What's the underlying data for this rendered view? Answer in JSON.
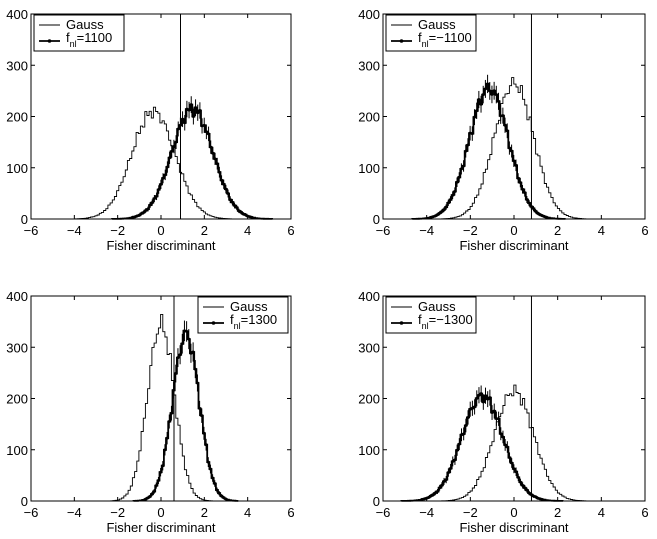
{
  "chart_data": [
    {
      "type": "histogram",
      "xlabel": "Fisher discriminant",
      "ylabel": "",
      "xlim": [
        -6,
        6
      ],
      "ylim": [
        0,
        400
      ],
      "xticks": [
        "−6",
        "−4",
        "−2",
        "0",
        "2",
        "4",
        "6"
      ],
      "yticks": [
        "0",
        "100",
        "200",
        "300",
        "400"
      ],
      "threshold_x": 0.9,
      "legend_position": "top-left",
      "legend": {
        "gauss": "Gauss",
        "fnl_base": "f",
        "fnl_sub": "nl",
        "fnl_value": "=1100"
      },
      "series": [
        {
          "name": "Gauss",
          "mu": -0.35,
          "sigma": 1.0,
          "peak": 210
        },
        {
          "name": "f_nl=1100",
          "mu": 1.45,
          "sigma": 0.95,
          "peak": 215,
          "errorbars": true
        }
      ]
    },
    {
      "type": "histogram",
      "xlabel": "Fisher discriminant",
      "ylabel": "",
      "xlim": [
        -6,
        6
      ],
      "ylim": [
        0,
        400
      ],
      "xticks": [
        "−6",
        "−4",
        "−2",
        "0",
        "2",
        "4",
        "6"
      ],
      "yticks": [
        "0",
        "100",
        "200",
        "300",
        "400"
      ],
      "threshold_x": 0.8,
      "legend_position": "top-left",
      "legend": {
        "gauss": "Gauss",
        "fnl_base": "f",
        "fnl_sub": "nl",
        "fnl_value": "=−1100"
      },
      "series": [
        {
          "name": "Gauss",
          "mu": 0.0,
          "sigma": 0.9,
          "peak": 265
        },
        {
          "name": "f_nl=−1100",
          "mu": -1.15,
          "sigma": 0.9,
          "peak": 255,
          "errorbars": true
        }
      ]
    },
    {
      "type": "histogram",
      "xlabel": "Fisher discriminant",
      "ylabel": "",
      "xlim": [
        -6,
        6
      ],
      "ylim": [
        0,
        400
      ],
      "xticks": [
        "−6",
        "−4",
        "−2",
        "0",
        "2",
        "4",
        "6"
      ],
      "yticks": [
        "0",
        "100",
        "200",
        "300",
        "400"
      ],
      "threshold_x": 0.6,
      "legend_position": "top-right",
      "legend": {
        "gauss": "Gauss",
        "fnl_base": "f",
        "fnl_sub": "nl",
        "fnl_value": "=1300"
      },
      "series": [
        {
          "name": "Gauss",
          "mu": 0.0,
          "sigma": 0.62,
          "peak": 345
        },
        {
          "name": "f_nl=1300",
          "mu": 1.15,
          "sigma": 0.62,
          "peak": 325,
          "errorbars": true
        }
      ]
    },
    {
      "type": "histogram",
      "xlabel": "Fisher discriminant",
      "ylabel": "",
      "xlim": [
        -6,
        6
      ],
      "ylim": [
        0,
        400
      ],
      "xticks": [
        "−6",
        "−4",
        "−2",
        "0",
        "2",
        "4",
        "6"
      ],
      "yticks": [
        "0",
        "100",
        "200",
        "300",
        "400"
      ],
      "threshold_x": 0.8,
      "legend_position": "top-left",
      "legend": {
        "gauss": "Gauss",
        "fnl_base": "f",
        "fnl_sub": "nl",
        "fnl_value": "=−1300"
      },
      "series": [
        {
          "name": "Gauss",
          "mu": 0.0,
          "sigma": 0.9,
          "peak": 215
        },
        {
          "name": "f_nl=−1300",
          "mu": -1.45,
          "sigma": 0.95,
          "peak": 205,
          "errorbars": true
        }
      ]
    }
  ]
}
